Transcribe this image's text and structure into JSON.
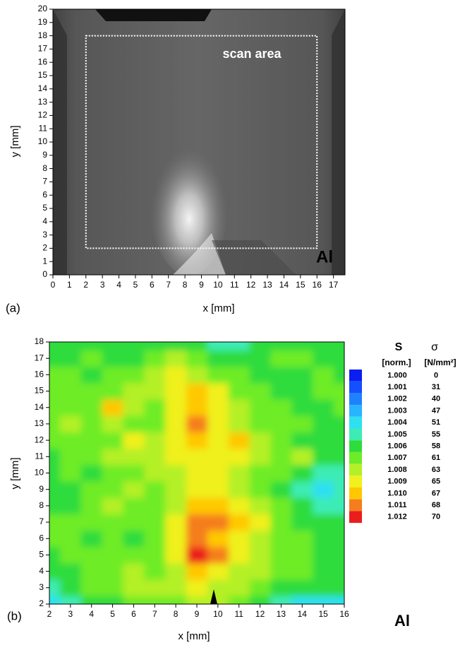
{
  "chart_data": [
    {
      "type": "image",
      "panel_label": "(a)",
      "xlabel": "x [mm]",
      "ylabel": "y [mm]",
      "xlim": [
        0,
        17.7
      ],
      "ylim": [
        0,
        20
      ],
      "xticks": [
        0,
        1,
        2,
        3,
        4,
        5,
        6,
        7,
        8,
        9,
        10,
        11,
        12,
        13,
        14,
        15,
        16,
        17
      ],
      "yticks": [
        0,
        1,
        2,
        3,
        4,
        5,
        6,
        7,
        8,
        9,
        10,
        11,
        12,
        13,
        14,
        15,
        16,
        17,
        18,
        19,
        20
      ],
      "scan_area": {
        "label": "scan area",
        "xlim": [
          2,
          16
        ],
        "ylim": [
          2,
          18
        ]
      },
      "material": "Al"
    },
    {
      "type": "contour",
      "panel_label": "(b)",
      "xlabel": "x [mm]",
      "ylabel": "y [mm]",
      "xlim": [
        2,
        16
      ],
      "ylim": [
        2,
        18
      ],
      "xticks": [
        2,
        3,
        4,
        5,
        6,
        7,
        8,
        9,
        10,
        11,
        12,
        13,
        14,
        15,
        16
      ],
      "yticks": [
        2,
        3,
        4,
        5,
        6,
        7,
        8,
        9,
        10,
        11,
        12,
        13,
        14,
        15,
        16,
        17,
        18
      ],
      "material": "Al",
      "x": [
        2,
        3,
        4,
        5,
        6,
        7,
        8,
        9,
        10,
        11,
        12,
        13,
        14,
        15,
        16
      ],
      "y": [
        2,
        3,
        4,
        5,
        6,
        7,
        8,
        9,
        10,
        11,
        12,
        13,
        14,
        15,
        16,
        17,
        18
      ],
      "z": [
        [
          1.004,
          1.005,
          1.006,
          1.006,
          1.007,
          1.007,
          1.007,
          1.008,
          1.008,
          1.007,
          1.006,
          1.005,
          1.004,
          1.004,
          1.004
        ],
        [
          1.005,
          1.006,
          1.007,
          1.007,
          1.008,
          1.008,
          1.008,
          1.009,
          1.008,
          1.008,
          1.007,
          1.006,
          1.006,
          1.006,
          1.006
        ],
        [
          1.006,
          1.006,
          1.007,
          1.007,
          1.008,
          1.007,
          1.008,
          1.01,
          1.009,
          1.008,
          1.008,
          1.007,
          1.007,
          1.006,
          1.006
        ],
        [
          1.006,
          1.007,
          1.007,
          1.007,
          1.007,
          1.007,
          1.009,
          1.012,
          1.011,
          1.009,
          1.008,
          1.007,
          1.007,
          1.006,
          1.006
        ],
        [
          1.007,
          1.007,
          1.006,
          1.007,
          1.006,
          1.007,
          1.009,
          1.011,
          1.01,
          1.009,
          1.008,
          1.007,
          1.007,
          1.006,
          1.006
        ],
        [
          1.007,
          1.007,
          1.007,
          1.007,
          1.007,
          1.007,
          1.009,
          1.011,
          1.011,
          1.01,
          1.009,
          1.007,
          1.006,
          1.006,
          1.006
        ],
        [
          1.006,
          1.006,
          1.007,
          1.008,
          1.007,
          1.007,
          1.008,
          1.01,
          1.01,
          1.009,
          1.008,
          1.007,
          1.006,
          1.005,
          1.005
        ],
        [
          1.006,
          1.006,
          1.007,
          1.007,
          1.008,
          1.007,
          1.008,
          1.009,
          1.009,
          1.008,
          1.007,
          1.006,
          1.005,
          1.004,
          1.005
        ],
        [
          1.006,
          1.007,
          1.006,
          1.007,
          1.007,
          1.008,
          1.008,
          1.009,
          1.009,
          1.008,
          1.007,
          1.007,
          1.006,
          1.005,
          1.005
        ],
        [
          1.006,
          1.007,
          1.007,
          1.008,
          1.008,
          1.008,
          1.009,
          1.009,
          1.009,
          1.009,
          1.008,
          1.007,
          1.008,
          1.006,
          1.006
        ],
        [
          1.007,
          1.007,
          1.007,
          1.007,
          1.009,
          1.008,
          1.009,
          1.01,
          1.009,
          1.01,
          1.008,
          1.007,
          1.006,
          1.006,
          1.006
        ],
        [
          1.007,
          1.008,
          1.007,
          1.008,
          1.007,
          1.007,
          1.009,
          1.011,
          1.009,
          1.008,
          1.007,
          1.007,
          1.007,
          1.006,
          1.006
        ],
        [
          1.007,
          1.007,
          1.007,
          1.01,
          1.008,
          1.007,
          1.009,
          1.01,
          1.009,
          1.008,
          1.007,
          1.007,
          1.006,
          1.006,
          1.007
        ],
        [
          1.007,
          1.007,
          1.007,
          1.007,
          1.008,
          1.008,
          1.009,
          1.01,
          1.009,
          1.007,
          1.007,
          1.006,
          1.006,
          1.007,
          1.007
        ],
        [
          1.007,
          1.007,
          1.006,
          1.007,
          1.007,
          1.008,
          1.009,
          1.008,
          1.007,
          1.007,
          1.006,
          1.006,
          1.006,
          1.007,
          1.006
        ],
        [
          1.006,
          1.006,
          1.007,
          1.006,
          1.006,
          1.007,
          1.008,
          1.007,
          1.006,
          1.006,
          1.006,
          1.007,
          1.007,
          1.006,
          1.006
        ],
        [
          1.006,
          1.006,
          1.006,
          1.006,
          1.006,
          1.006,
          1.006,
          1.006,
          1.005,
          1.005,
          1.006,
          1.006,
          1.006,
          1.006,
          1.006
        ]
      ],
      "colorbar": {
        "s_title": "S",
        "s_unit": "[norm.]",
        "sigma_title": "σ",
        "sigma_unit": "[N/mm²]"
      },
      "levels": [
        {
          "S": {
            "value": 1.0,
            "label": "1.000"
          },
          "sigma": 0,
          "color": "#0a1ef0"
        },
        {
          "S": {
            "value": 1.001,
            "label": "1.001"
          },
          "sigma": 31,
          "color": "#1450ff"
        },
        {
          "S": {
            "value": 1.002,
            "label": "1.002"
          },
          "sigma": 40,
          "color": "#1e82ff"
        },
        {
          "S": {
            "value": 1.003,
            "label": "1.003"
          },
          "sigma": 47,
          "color": "#28b4ff"
        },
        {
          "S": {
            "value": 1.004,
            "label": "1.004"
          },
          "sigma": 51,
          "color": "#2ee0f0"
        },
        {
          "S": {
            "value": 1.005,
            "label": "1.005"
          },
          "sigma": 55,
          "color": "#3cecb4"
        },
        {
          "S": {
            "value": 1.006,
            "label": "1.006"
          },
          "sigma": 58,
          "color": "#2edc3c"
        },
        {
          "S": {
            "value": 1.007,
            "label": "1.007"
          },
          "sigma": 61,
          "color": "#6eec28"
        },
        {
          "S": {
            "value": 1.008,
            "label": "1.008"
          },
          "sigma": 63,
          "color": "#b4f028"
        },
        {
          "S": {
            "value": 1.009,
            "label": "1.009"
          },
          "sigma": 65,
          "color": "#f0f01e"
        },
        {
          "S": {
            "value": 1.01,
            "label": "1.010"
          },
          "sigma": 67,
          "color": "#ffc800"
        },
        {
          "S": {
            "value": 1.011,
            "label": "1.011"
          },
          "sigma": 68,
          "color": "#f57d1e"
        },
        {
          "S": {
            "value": 1.012,
            "label": "1.012"
          },
          "sigma": 70,
          "color": "#eb1e1e"
        }
      ]
    }
  ]
}
